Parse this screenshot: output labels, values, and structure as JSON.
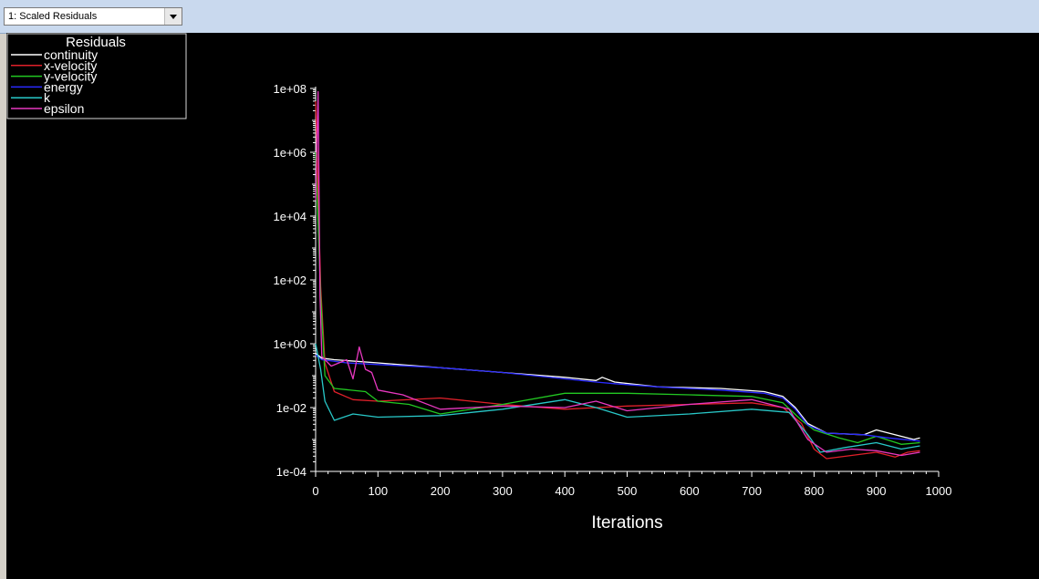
{
  "window": {
    "selector_value": "1: Scaled Residuals"
  },
  "colors": {
    "background": "#000000",
    "axis": "#ffffff",
    "continuity": "#ffffff",
    "x-velocity": "#e0202a",
    "y-velocity": "#22c822",
    "energy": "#2a2aff",
    "k": "#28c8c8",
    "epsilon": "#e838c0"
  },
  "chart_data": {
    "type": "line",
    "legend_title": "Residuals",
    "legend_position": "top-left",
    "xlabel": "Iterations",
    "ylabel": "",
    "title": "",
    "xlim": [
      0,
      1000
    ],
    "ylim_log10": [
      -4,
      8
    ],
    "yscale": "log",
    "x_ticks": [
      "0",
      "100",
      "200",
      "300",
      "400",
      "500",
      "600",
      "700",
      "800",
      "900",
      "1000"
    ],
    "y_ticks": [
      "1e-04",
      "1e-02",
      "1e+00",
      "1e+02",
      "1e+04",
      "1e+06",
      "1e+08"
    ],
    "grid": false,
    "series": [
      {
        "name": "continuity",
        "color_key": "continuity",
        "points_log10": [
          [
            0,
            -0.3
          ],
          [
            10,
            -0.45
          ],
          [
            30,
            -0.5
          ],
          [
            100,
            -0.6
          ],
          [
            200,
            -0.75
          ],
          [
            300,
            -0.9
          ],
          [
            400,
            -1.05
          ],
          [
            450,
            -1.15
          ],
          [
            460,
            -1.05
          ],
          [
            480,
            -1.2
          ],
          [
            550,
            -1.35
          ],
          [
            650,
            -1.4
          ],
          [
            720,
            -1.5
          ],
          [
            750,
            -1.65
          ],
          [
            770,
            -2.0
          ],
          [
            790,
            -2.5
          ],
          [
            820,
            -2.8
          ],
          [
            880,
            -2.85
          ],
          [
            900,
            -2.7
          ],
          [
            940,
            -2.9
          ],
          [
            960,
            -3.0
          ],
          [
            970,
            -2.95
          ]
        ]
      },
      {
        "name": "x-velocity",
        "color_key": "x-velocity",
        "points_log10": [
          [
            0,
            7.6
          ],
          [
            8,
            1.8
          ],
          [
            15,
            -0.6
          ],
          [
            30,
            -1.5
          ],
          [
            60,
            -1.75
          ],
          [
            100,
            -1.8
          ],
          [
            200,
            -1.7
          ],
          [
            300,
            -1.9
          ],
          [
            400,
            -2.05
          ],
          [
            500,
            -1.95
          ],
          [
            600,
            -1.9
          ],
          [
            700,
            -1.85
          ],
          [
            750,
            -2.0
          ],
          [
            780,
            -2.5
          ],
          [
            800,
            -3.3
          ],
          [
            820,
            -3.6
          ],
          [
            860,
            -3.5
          ],
          [
            900,
            -3.4
          ],
          [
            930,
            -3.55
          ],
          [
            950,
            -3.4
          ],
          [
            970,
            -3.35
          ]
        ]
      },
      {
        "name": "y-velocity",
        "color_key": "y-velocity",
        "points_log10": [
          [
            0,
            6.0
          ],
          [
            8,
            1.5
          ],
          [
            15,
            -1.0
          ],
          [
            30,
            -1.4
          ],
          [
            80,
            -1.5
          ],
          [
            100,
            -1.8
          ],
          [
            150,
            -1.9
          ],
          [
            200,
            -2.2
          ],
          [
            300,
            -1.9
          ],
          [
            400,
            -1.55
          ],
          [
            500,
            -1.55
          ],
          [
            600,
            -1.6
          ],
          [
            700,
            -1.65
          ],
          [
            750,
            -1.85
          ],
          [
            780,
            -2.4
          ],
          [
            800,
            -2.7
          ],
          [
            840,
            -2.95
          ],
          [
            870,
            -3.1
          ],
          [
            900,
            -2.9
          ],
          [
            940,
            -3.15
          ],
          [
            970,
            -3.1
          ]
        ]
      },
      {
        "name": "energy",
        "color_key": "energy",
        "points_log10": [
          [
            0,
            -0.35
          ],
          [
            10,
            -0.5
          ],
          [
            50,
            -0.6
          ],
          [
            100,
            -0.65
          ],
          [
            200,
            -0.75
          ],
          [
            300,
            -0.9
          ],
          [
            400,
            -1.1
          ],
          [
            450,
            -1.2
          ],
          [
            480,
            -1.25
          ],
          [
            550,
            -1.35
          ],
          [
            650,
            -1.45
          ],
          [
            720,
            -1.55
          ],
          [
            750,
            -1.7
          ],
          [
            770,
            -2.05
          ],
          [
            790,
            -2.55
          ],
          [
            820,
            -2.8
          ],
          [
            880,
            -2.85
          ],
          [
            920,
            -2.95
          ],
          [
            970,
            -3.05
          ]
        ]
      },
      {
        "name": "k",
        "color_key": "k",
        "points_log10": [
          [
            0,
            0.0
          ],
          [
            8,
            -0.8
          ],
          [
            15,
            -1.8
          ],
          [
            30,
            -2.4
          ],
          [
            60,
            -2.2
          ],
          [
            100,
            -2.3
          ],
          [
            200,
            -2.25
          ],
          [
            300,
            -2.05
          ],
          [
            400,
            -1.75
          ],
          [
            450,
            -2.0
          ],
          [
            500,
            -2.3
          ],
          [
            600,
            -2.2
          ],
          [
            700,
            -2.05
          ],
          [
            760,
            -2.15
          ],
          [
            790,
            -2.85
          ],
          [
            810,
            -3.4
          ],
          [
            850,
            -3.25
          ],
          [
            900,
            -3.1
          ],
          [
            940,
            -3.3
          ],
          [
            970,
            -3.2
          ]
        ]
      },
      {
        "name": "epsilon",
        "color_key": "epsilon",
        "points_log10": [
          [
            0,
            4.5
          ],
          [
            4,
            7.9
          ],
          [
            7,
            1.5
          ],
          [
            10,
            -0.4
          ],
          [
            25,
            -0.7
          ],
          [
            50,
            -0.5
          ],
          [
            60,
            -1.1
          ],
          [
            70,
            -0.1
          ],
          [
            80,
            -0.8
          ],
          [
            90,
            -0.9
          ],
          [
            100,
            -1.45
          ],
          [
            140,
            -1.6
          ],
          [
            200,
            -2.05
          ],
          [
            300,
            -1.95
          ],
          [
            400,
            -2.0
          ],
          [
            450,
            -1.8
          ],
          [
            500,
            -2.1
          ],
          [
            600,
            -1.9
          ],
          [
            700,
            -1.75
          ],
          [
            760,
            -2.05
          ],
          [
            790,
            -3.0
          ],
          [
            820,
            -3.4
          ],
          [
            860,
            -3.3
          ],
          [
            900,
            -3.35
          ],
          [
            940,
            -3.5
          ],
          [
            970,
            -3.4
          ]
        ]
      }
    ]
  }
}
